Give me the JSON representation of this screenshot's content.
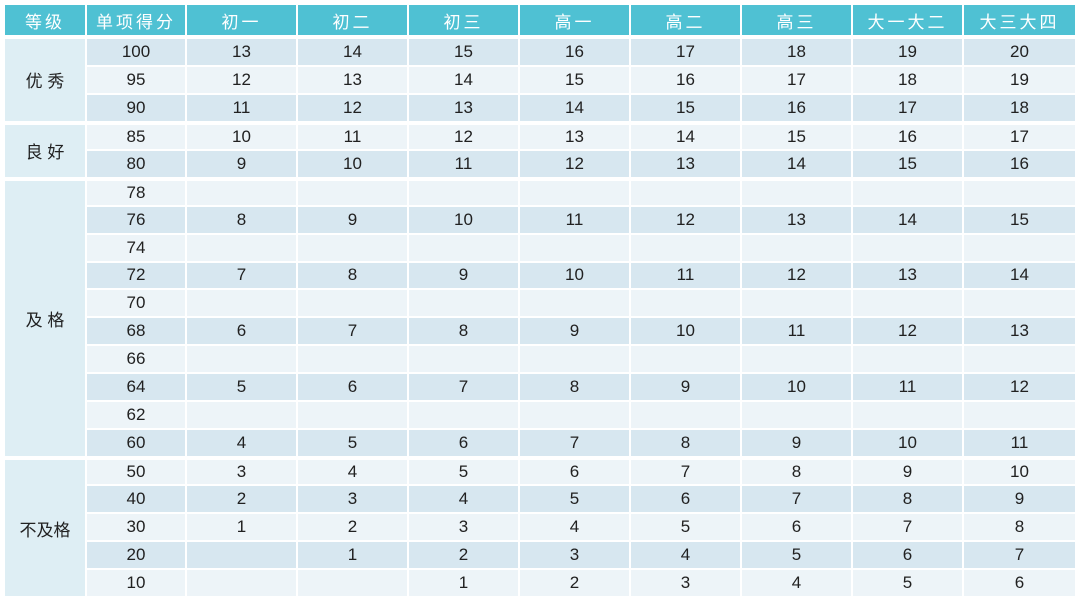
{
  "colors": {
    "header_bg": "#4fc1d3",
    "header_text": "#ffffff",
    "row_dark": "#d7e7f0",
    "row_light": "#edf4f8",
    "grade_bg": "#deeef4",
    "body_text": "#212121",
    "page_bg": "#ffffff"
  },
  "chart_data": {
    "type": "table",
    "columns": [
      "等级",
      "单项得分",
      "初一",
      "初二",
      "初三",
      "高一",
      "高二",
      "高三",
      "大一大二",
      "大三大四"
    ],
    "groups": [
      {
        "grade": "优 秀",
        "rows": [
          {
            "score": "100",
            "values": [
              "13",
              "14",
              "15",
              "16",
              "17",
              "18",
              "19",
              "20"
            ]
          },
          {
            "score": "95",
            "values": [
              "12",
              "13",
              "14",
              "15",
              "16",
              "17",
              "18",
              "19"
            ]
          },
          {
            "score": "90",
            "values": [
              "11",
              "12",
              "13",
              "14",
              "15",
              "16",
              "17",
              "18"
            ]
          }
        ]
      },
      {
        "grade": "良 好",
        "rows": [
          {
            "score": "85",
            "values": [
              "10",
              "11",
              "12",
              "13",
              "14",
              "15",
              "16",
              "17"
            ]
          },
          {
            "score": "80",
            "values": [
              "9",
              "10",
              "11",
              "12",
              "13",
              "14",
              "15",
              "16"
            ]
          }
        ]
      },
      {
        "grade": "及 格",
        "rows": [
          {
            "score": "78",
            "values": [
              "",
              "",
              "",
              "",
              "",
              "",
              "",
              ""
            ]
          },
          {
            "score": "76",
            "values": [
              "8",
              "9",
              "10",
              "11",
              "12",
              "13",
              "14",
              "15"
            ]
          },
          {
            "score": "74",
            "values": [
              "",
              "",
              "",
              "",
              "",
              "",
              "",
              ""
            ]
          },
          {
            "score": "72",
            "values": [
              "7",
              "8",
              "9",
              "10",
              "11",
              "12",
              "13",
              "14"
            ]
          },
          {
            "score": "70",
            "values": [
              "",
              "",
              "",
              "",
              "",
              "",
              "",
              ""
            ]
          },
          {
            "score": "68",
            "values": [
              "6",
              "7",
              "8",
              "9",
              "10",
              "11",
              "12",
              "13"
            ]
          },
          {
            "score": "66",
            "values": [
              "",
              "",
              "",
              "",
              "",
              "",
              "",
              ""
            ]
          },
          {
            "score": "64",
            "values": [
              "5",
              "6",
              "7",
              "8",
              "9",
              "10",
              "11",
              "12"
            ]
          },
          {
            "score": "62",
            "values": [
              "",
              "",
              "",
              "",
              "",
              "",
              "",
              ""
            ]
          },
          {
            "score": "60",
            "values": [
              "4",
              "5",
              "6",
              "7",
              "8",
              "9",
              "10",
              "11"
            ]
          }
        ]
      },
      {
        "grade": "不及格",
        "rows": [
          {
            "score": "50",
            "values": [
              "3",
              "4",
              "5",
              "6",
              "7",
              "8",
              "9",
              "10"
            ]
          },
          {
            "score": "40",
            "values": [
              "2",
              "3",
              "4",
              "5",
              "6",
              "7",
              "8",
              "9"
            ]
          },
          {
            "score": "30",
            "values": [
              "1",
              "2",
              "3",
              "4",
              "5",
              "6",
              "7",
              "8"
            ]
          },
          {
            "score": "20",
            "values": [
              "",
              "1",
              "2",
              "3",
              "4",
              "5",
              "6",
              "7"
            ]
          },
          {
            "score": "10",
            "values": [
              "",
              "",
              "1",
              "2",
              "3",
              "4",
              "5",
              "6"
            ]
          }
        ]
      }
    ]
  }
}
